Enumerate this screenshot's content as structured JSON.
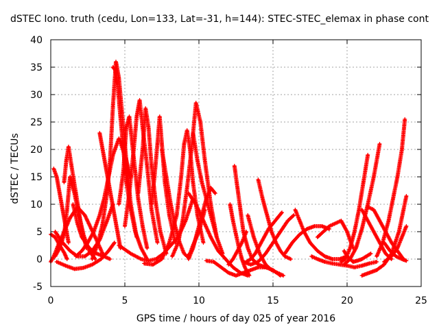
{
  "chart_data": {
    "type": "scatter",
    "title": "dSTEC Iono. truth (cedu, Lon=133, Lat=-31, h=144): STEC-STEC_elemax in phase cont",
    "xlabel": "GPS time / hours of day 025 of year 2016",
    "ylabel": "dSTEC  / TECUs",
    "xlim": [
      0,
      25
    ],
    "ylim": [
      -5,
      40
    ],
    "x_ticks": [
      "0",
      "5",
      "10",
      "15",
      "20",
      "25"
    ],
    "y_ticks": [
      "-5",
      "0",
      "5",
      "10",
      "15",
      "20",
      "25",
      "30",
      "35",
      "40"
    ],
    "grid": true,
    "marker": "+",
    "color": "#ff0000",
    "series": [
      {
        "x": [
          0.0,
          0.2,
          0.5,
          0.9,
          1.3,
          1.8,
          2.3,
          3.0,
          3.5
        ],
        "y": [
          -0.5,
          0.5,
          2.5,
          5,
          7.5,
          9.5,
          8,
          4,
          1
        ]
      },
      {
        "x": [
          0.2,
          0.4,
          0.6,
          0.8,
          1.0,
          1.2
        ],
        "y": [
          16.5,
          15,
          12,
          9,
          6,
          3
        ]
      },
      {
        "x": [
          0.0,
          0.3,
          0.6,
          0.9,
          1.1
        ],
        "y": [
          4.5,
          4,
          2.5,
          1.2,
          0
        ]
      },
      {
        "x": [
          0.3,
          0.6,
          0.9,
          1.1,
          1.3,
          1.6,
          1.9,
          2.2,
          2.6,
          3.0
        ],
        "y": [
          0.5,
          2,
          4.5,
          9,
          15,
          12,
          8,
          4.5,
          1.5,
          0
        ]
      },
      {
        "x": [
          0.9,
          1.05,
          1.2,
          1.4,
          1.7,
          2.0,
          2.4
        ],
        "y": [
          14,
          18,
          20.5,
          17,
          12,
          7,
          2
        ]
      },
      {
        "x": [
          0.3,
          0.8,
          1.3,
          1.8,
          2.3,
          2.8,
          3.3,
          3.8,
          4.2
        ],
        "y": [
          5,
          3,
          1.5,
          0.5,
          0.5,
          1.5,
          3.5,
          7,
          10
        ]
      },
      {
        "x": [
          1.5,
          1.8,
          2.1,
          2.6,
          3.1,
          3.6,
          4.0
        ],
        "y": [
          10,
          6.5,
          4,
          2,
          1,
          0.5,
          0
        ]
      },
      {
        "x": [
          0.4,
          1.0,
          1.6,
          2.2,
          2.8,
          3.4,
          3.9,
          4.3
        ],
        "y": [
          -0.5,
          -1.2,
          -1.8,
          -1.6,
          -1,
          0,
          1.5,
          3
        ]
      },
      {
        "x": [
          1.7,
          2.1,
          2.5,
          2.9,
          3.3,
          3.6,
          3.9,
          4.2,
          4.6,
          5.0,
          5.4
        ],
        "y": [
          0.5,
          1.5,
          3,
          5,
          8,
          11,
          15,
          19,
          22,
          19,
          15
        ]
      },
      {
        "x": [
          3.3,
          3.5,
          3.7,
          3.9,
          4.1,
          4.3,
          4.5,
          4.7
        ],
        "y": [
          23,
          20,
          17,
          14,
          11,
          8,
          5,
          2
        ]
      },
      {
        "x": [
          2.8,
          3.2,
          3.5,
          3.8,
          4.0,
          4.2,
          4.4,
          4.6,
          4.8,
          5.1,
          5.4,
          5.8
        ],
        "y": [
          0,
          3,
          6.5,
          12,
          18,
          28,
          36,
          33,
          27,
          18,
          10,
          4
        ]
      },
      {
        "x": [
          4.2,
          4.35,
          4.5,
          4.7,
          4.9,
          5.1,
          5.4,
          5.7,
          6.1,
          6.5
        ],
        "y": [
          35,
          34.5,
          32,
          26,
          20,
          14,
          9,
          5,
          2,
          0
        ]
      },
      {
        "x": [
          4.6,
          4.9,
          5.1,
          5.3,
          5.5,
          5.7,
          5.9,
          6.2,
          6.5
        ],
        "y": [
          10,
          16,
          24,
          26,
          21,
          16,
          11,
          6,
          2
        ]
      },
      {
        "x": [
          5.0,
          5.3,
          5.6,
          5.8,
          6.0,
          6.2,
          6.5,
          6.8,
          7.2
        ],
        "y": [
          6,
          12,
          20,
          26,
          29,
          24,
          17,
          9,
          3
        ]
      },
      {
        "x": [
          5.9,
          6.2,
          6.4,
          6.6,
          6.8,
          7.1,
          7.4,
          7.8
        ],
        "y": [
          12,
          20,
          27.5,
          24,
          17,
          10,
          5,
          1
        ]
      },
      {
        "x": [
          6.8,
          7.0,
          7.2,
          7.35,
          7.5,
          7.7,
          8.0,
          8.4
        ],
        "y": [
          10,
          15,
          21,
          26,
          21,
          14,
          8,
          3
        ]
      },
      {
        "x": [
          4.6,
          5.4,
          6.1,
          6.6,
          7.1,
          7.6,
          8.1,
          8.6,
          9.1,
          9.6
        ],
        "y": [
          2.5,
          1,
          0,
          -0.3,
          0,
          1,
          2.5,
          4,
          7,
          11
        ]
      },
      {
        "x": [
          6.3,
          6.9,
          7.5,
          8.0,
          8.5,
          8.8,
          9.0,
          9.2,
          9.4,
          9.6,
          9.9,
          10.3
        ],
        "y": [
          -0.8,
          -1,
          0,
          3,
          8,
          15,
          21,
          23.5,
          20,
          14,
          8,
          3
        ]
      },
      {
        "x": [
          7.5,
          7.8,
          8.1,
          8.4,
          8.7,
          9.0,
          9.2,
          9.4,
          9.6,
          10.0,
          10.4
        ],
        "y": [
          20,
          15,
          10,
          6,
          3,
          1,
          0.5,
          1,
          2.5,
          5,
          9
        ]
      },
      {
        "x": [
          8.2,
          8.6,
          8.9,
          9.2,
          9.5,
          9.8,
          10.1,
          10.4,
          10.8,
          11.2,
          11.6
        ],
        "y": [
          0.5,
          3,
          7,
          13,
          20,
          28.5,
          25,
          18,
          10,
          4,
          1
        ]
      },
      {
        "x": [
          9.6,
          9.9,
          10.2,
          10.6,
          10.9,
          11.2
        ],
        "y": [
          23,
          18,
          14,
          10,
          7,
          4
        ]
      },
      {
        "x": [
          9.3,
          9.8,
          10.3,
          10.8,
          11.3,
          11.8,
          12.3,
          12.8,
          13.3
        ],
        "y": [
          12,
          10,
          7,
          4,
          1.5,
          0,
          -1.5,
          -2.5,
          -3
        ]
      },
      {
        "x": [
          9.3,
          9.6,
          9.9,
          10.2,
          10.5,
          10.8,
          11.1
        ],
        "y": [
          0,
          2,
          5,
          8,
          11,
          13,
          12
        ]
      },
      {
        "x": [
          10.5,
          11.0,
          11.5,
          12.0,
          12.5,
          13.0,
          13.5,
          14.0,
          14.5,
          15.0,
          15.5
        ],
        "y": [
          -0.3,
          -0.5,
          -1.5,
          -2.5,
          -3,
          -2.5,
          -2,
          -1.5,
          -1.5,
          -2,
          -3
        ]
      },
      {
        "x": [
          12.1,
          12.3,
          12.5,
          12.7,
          12.9,
          13.1,
          13.4
        ],
        "y": [
          10,
          7,
          4.5,
          2,
          0,
          -1.5,
          -3
        ]
      },
      {
        "x": [
          12.4,
          12.6,
          12.8,
          13.0,
          13.3,
          13.6,
          14.0,
          14.5
        ],
        "y": [
          17,
          13,
          9,
          5,
          2,
          0,
          -1,
          -1.5
        ]
      },
      {
        "x": [
          12.0,
          12.3,
          12.6,
          12.9,
          13.2
        ],
        "y": [
          -1,
          0,
          1.5,
          3,
          5
        ]
      },
      {
        "x": [
          13.3,
          13.7,
          14.1,
          14.5,
          14.9,
          15.3,
          15.7
        ],
        "y": [
          8,
          4,
          1,
          -1,
          -2,
          -2.5,
          -3
        ]
      },
      {
        "x": [
          14.0,
          14.3,
          14.6,
          14.9,
          15.2,
          15.5,
          15.8,
          16.2
        ],
        "y": [
          14.5,
          11,
          8,
          5,
          3,
          1.5,
          0.5,
          0
        ]
      },
      {
        "x": [
          13.0,
          13.5,
          14.0,
          14.5,
          15.0,
          15.5,
          16.0,
          16.4
        ],
        "y": [
          -0.5,
          -1,
          -0.5,
          1,
          3,
          5,
          7,
          8
        ]
      },
      {
        "x": [
          13.2,
          13.5,
          13.8,
          14.1,
          14.4,
          14.7,
          15.0,
          15.3,
          15.6
        ],
        "y": [
          -0.5,
          0,
          1,
          2.5,
          4,
          5.5,
          6.5,
          7.5,
          8.5
        ]
      },
      {
        "x": [
          15.8,
          16.3,
          16.8,
          17.3,
          17.8,
          18.3,
          18.8
        ],
        "y": [
          1,
          3,
          4.5,
          5.5,
          6,
          6,
          5.5
        ]
      },
      {
        "x": [
          16.5,
          16.8,
          17.1,
          17.5,
          18.0,
          18.5,
          19.0,
          19.5,
          20.0
        ],
        "y": [
          9,
          7,
          5,
          3,
          1.5,
          0.5,
          0,
          0,
          0.5
        ]
      },
      {
        "x": [
          17.6,
          18.0,
          18.5,
          19.0,
          19.5,
          20.0,
          20.5,
          21.0,
          21.5,
          22.0
        ],
        "y": [
          0.5,
          0,
          -0.5,
          -0.8,
          -1,
          -1.2,
          -1.5,
          -1.2,
          -0.8,
          -0.5
        ]
      },
      {
        "x": [
          18.0,
          18.4,
          18.8,
          19.2,
          19.6,
          20.0,
          20.4
        ],
        "y": [
          4,
          5,
          6,
          6.5,
          7,
          5,
          2
        ]
      },
      {
        "x": [
          19.8,
          20.0,
          20.2,
          20.4,
          20.7,
          21.0,
          21.3,
          21.6
        ],
        "y": [
          1.5,
          0.5,
          0,
          -0.5,
          -0.3,
          0,
          0.5,
          1
        ]
      },
      {
        "x": [
          19.6,
          19.9,
          20.2,
          20.5,
          20.8,
          21.1,
          21.4
        ],
        "y": [
          -0.5,
          0,
          2,
          5,
          9,
          14,
          19
        ]
      },
      {
        "x": [
          19.8,
          20.2,
          20.6,
          21.0,
          21.4,
          21.8,
          22.2
        ],
        "y": [
          -1,
          0,
          2,
          5.5,
          10,
          15,
          21
        ]
      },
      {
        "x": [
          21.0,
          21.4,
          21.8,
          22.2,
          22.6,
          23.0
        ],
        "y": [
          9,
          7,
          5,
          3,
          1,
          0
        ]
      },
      {
        "x": [
          21.4,
          21.8,
          22.2,
          22.6,
          23.0,
          23.4,
          23.8
        ],
        "y": [
          9.5,
          9,
          7,
          5,
          3,
          1.5,
          0
        ]
      },
      {
        "x": [
          21.0,
          21.5,
          22.0,
          22.5,
          23.0,
          23.5,
          24.0
        ],
        "y": [
          -3,
          -2.5,
          -2,
          -1,
          1,
          5,
          11.5
        ]
      },
      {
        "x": [
          22.0,
          22.4,
          22.8,
          23.1,
          23.4,
          23.7,
          23.9
        ],
        "y": [
          0.5,
          3,
          7,
          11,
          15,
          20,
          25.5
        ]
      },
      {
        "x": [
          22.5,
          23.0,
          23.4,
          23.7,
          24.0
        ],
        "y": [
          -0.5,
          0.5,
          2,
          4,
          6
        ]
      },
      {
        "x": [
          22.5,
          22.9,
          23.3,
          23.7,
          24.0
        ],
        "y": [
          3,
          1.5,
          0.5,
          0,
          -0.3
        ]
      }
    ]
  }
}
